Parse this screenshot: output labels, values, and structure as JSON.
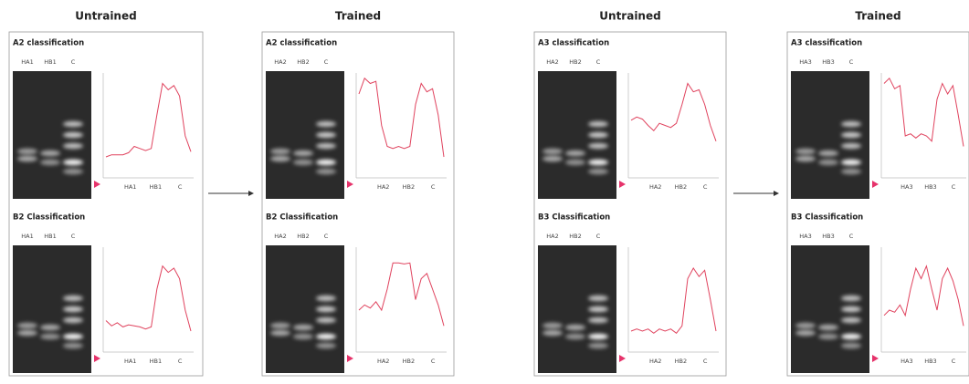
{
  "columns": [
    {
      "heading": "Untrained",
      "panels": [
        {
          "title": "A2 classification",
          "lanes": [
            "HA1",
            "HB1",
            "C"
          ],
          "axis_labels": [
            "HA1",
            "HB1",
            "C"
          ],
          "profile": [
            20,
            22,
            22,
            22,
            24,
            30,
            28,
            26,
            28,
            60,
            90,
            84,
            88,
            78,
            40,
            25
          ]
        },
        {
          "title": "B2 Classification",
          "lanes": [
            "HA1",
            "HB1",
            "C"
          ],
          "axis_labels": [
            "HA1",
            "HB1",
            "C"
          ],
          "profile": [
            30,
            25,
            28,
            24,
            26,
            25,
            24,
            22,
            24,
            60,
            82,
            76,
            80,
            70,
            40,
            20
          ]
        }
      ]
    },
    {
      "heading": "Trained",
      "panels": [
        {
          "title": "A2 classification",
          "lanes": [
            "HA2",
            "HB2",
            "C"
          ],
          "axis_labels": [
            "HA2",
            "HB2",
            "C"
          ],
          "profile": [
            80,
            95,
            90,
            92,
            50,
            30,
            28,
            30,
            28,
            30,
            70,
            90,
            82,
            85,
            60,
            20
          ]
        },
        {
          "title": "B2 Classification",
          "lanes": [
            "HA2",
            "HB2",
            "C"
          ],
          "axis_labels": [
            "HA2",
            "HB2",
            "C"
          ],
          "profile": [
            40,
            45,
            42,
            48,
            40,
            60,
            85,
            85,
            84,
            85,
            50,
            70,
            75,
            60,
            45,
            25
          ]
        }
      ]
    },
    {
      "heading": "Untrained",
      "panels": [
        {
          "title": "A3 classification",
          "lanes": [
            "HA2",
            "HB2",
            "C"
          ],
          "axis_labels": [
            "HA2",
            "HB2",
            "C"
          ],
          "profile": [
            55,
            58,
            56,
            50,
            45,
            52,
            50,
            48,
            52,
            70,
            90,
            82,
            84,
            70,
            50,
            35
          ]
        },
        {
          "title": "B3 Classification",
          "lanes": [
            "HA2",
            "HB2",
            "C"
          ],
          "axis_labels": [
            "HA2",
            "HB2",
            "C"
          ],
          "profile": [
            20,
            22,
            20,
            22,
            18,
            22,
            20,
            22,
            18,
            25,
            70,
            80,
            72,
            78,
            50,
            20
          ]
        }
      ]
    },
    {
      "heading": "Trained",
      "panels": [
        {
          "title": "A3 classification",
          "lanes": [
            "HA3",
            "HB3",
            "C"
          ],
          "axis_labels": [
            "HA3",
            "HB3",
            "C"
          ],
          "profile": [
            90,
            95,
            85,
            88,
            40,
            42,
            38,
            42,
            40,
            35,
            75,
            90,
            80,
            88,
            60,
            30
          ]
        },
        {
          "title": "B3 Classification",
          "lanes": [
            "HA3",
            "HB3",
            "C"
          ],
          "axis_labels": [
            "HA3",
            "HB3",
            "C"
          ],
          "profile": [
            35,
            40,
            38,
            45,
            35,
            60,
            80,
            70,
            82,
            60,
            40,
            70,
            80,
            68,
            50,
            25
          ]
        }
      ]
    }
  ]
}
